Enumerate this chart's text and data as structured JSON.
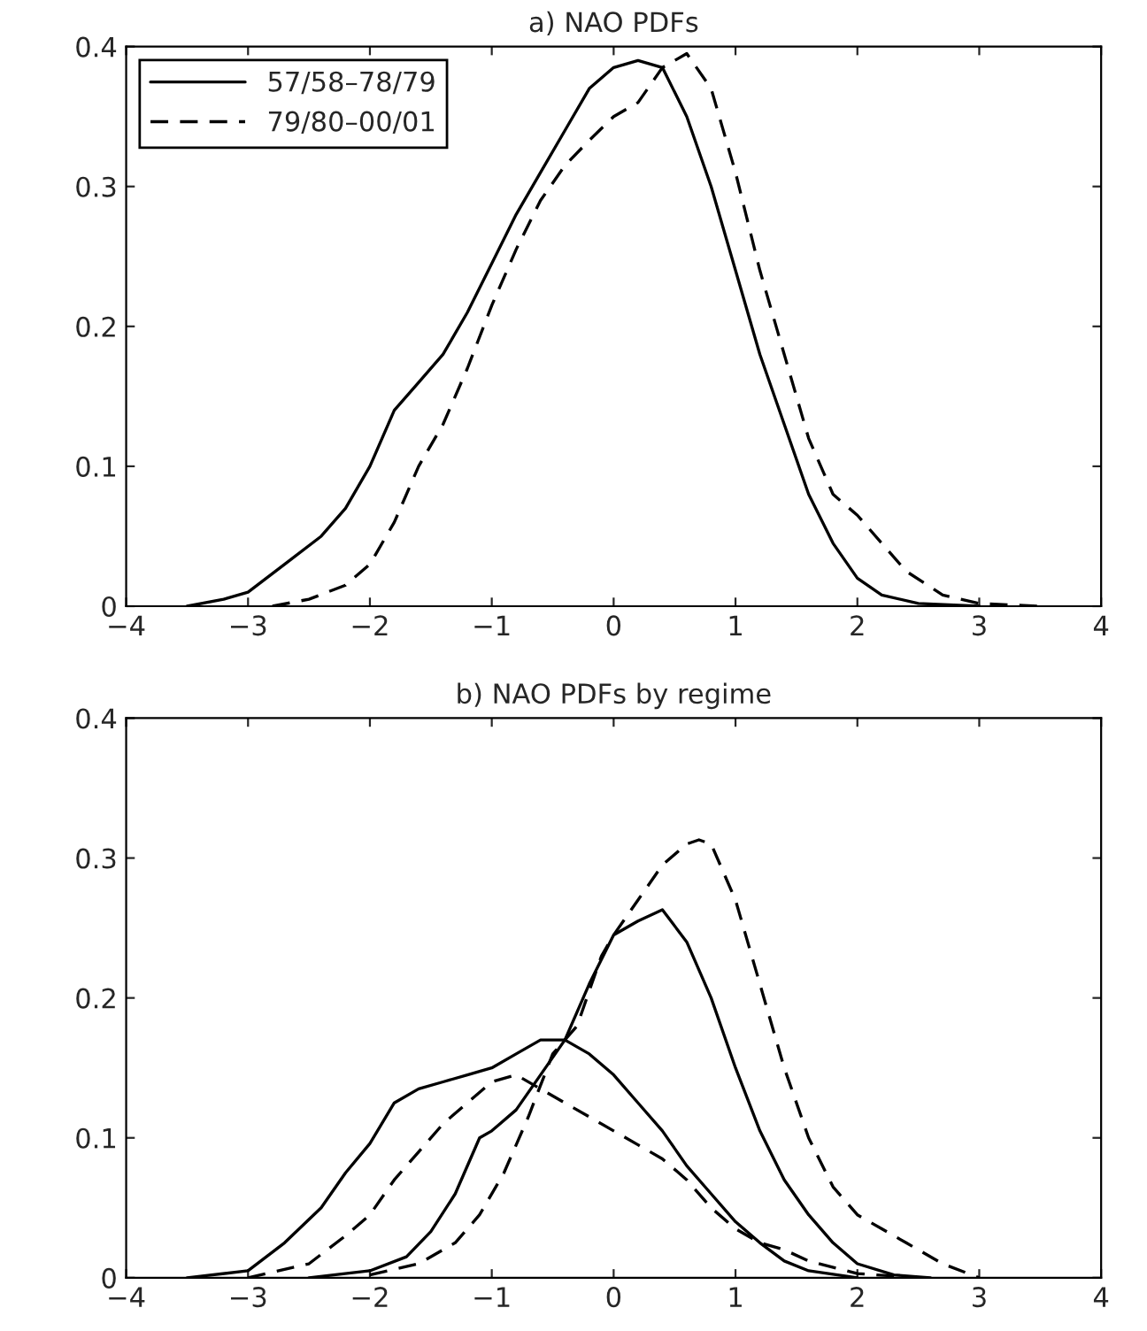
{
  "chart_data": [
    {
      "type": "line",
      "title": "a) NAO PDFs",
      "xlim": [
        -4,
        4
      ],
      "ylim": [
        0,
        0.4
      ],
      "xticks": [
        {
          "value": -4,
          "label": "−4"
        },
        {
          "value": -3,
          "label": "−3"
        },
        {
          "value": -2,
          "label": "−2"
        },
        {
          "value": -1,
          "label": "−1"
        },
        0,
        1,
        2,
        3,
        4
      ],
      "yticks": [
        0,
        0.1,
        0.2,
        0.3,
        0.4
      ],
      "legend": "top left",
      "grid": false,
      "series": [
        {
          "name": "57/58–78/79",
          "color": "#000000",
          "line_style": "solid",
          "x": [
            -3.5,
            -3.2,
            -3,
            -2.7,
            -2.4,
            -2.2,
            -2,
            -1.8,
            -1.6,
            -1.4,
            -1.2,
            -1,
            -0.8,
            -0.6,
            -0.4,
            -0.2,
            0,
            0.2,
            0.4,
            0.6,
            0.8,
            1,
            1.2,
            1.4,
            1.6,
            1.8,
            2,
            2.2,
            2.5,
            3
          ],
          "values": [
            0,
            0.005,
            0.01,
            0.03,
            0.05,
            0.07,
            0.1,
            0.14,
            0.16,
            0.18,
            0.21,
            0.245,
            0.28,
            0.31,
            0.34,
            0.37,
            0.385,
            0.39,
            0.385,
            0.35,
            0.3,
            0.24,
            0.18,
            0.13,
            0.08,
            0.045,
            0.02,
            0.008,
            0.002,
            0
          ]
        },
        {
          "name": "79/80–00/01",
          "color": "#000000",
          "line_style": "dashed",
          "x": [
            -2.8,
            -2.5,
            -2.2,
            -2,
            -1.8,
            -1.6,
            -1.4,
            -1.2,
            -1,
            -0.8,
            -0.6,
            -0.4,
            -0.2,
            0,
            0.2,
            0.4,
            0.6,
            0.8,
            1,
            1.2,
            1.4,
            1.6,
            1.8,
            2,
            2.2,
            2.4,
            2.7,
            3,
            3.5
          ],
          "values": [
            0,
            0.005,
            0.015,
            0.03,
            0.06,
            0.1,
            0.13,
            0.17,
            0.215,
            0.255,
            0.29,
            0.315,
            0.333,
            0.35,
            0.36,
            0.385,
            0.395,
            0.37,
            0.31,
            0.24,
            0.18,
            0.12,
            0.08,
            0.065,
            0.045,
            0.025,
            0.008,
            0.002,
            0
          ]
        }
      ]
    },
    {
      "type": "line",
      "title": "b) NAO PDFs by regime",
      "xlim": [
        -4,
        4
      ],
      "ylim": [
        0,
        0.4
      ],
      "xticks": [
        {
          "value": -4,
          "label": "−4"
        },
        {
          "value": -3,
          "label": "−3"
        },
        {
          "value": -2,
          "label": "−2"
        },
        {
          "value": -1,
          "label": "−1"
        },
        0,
        1,
        2,
        3,
        4
      ],
      "yticks": [
        0,
        0.1,
        0.2,
        0.3,
        0.4
      ],
      "grid": false,
      "series": [
        {
          "color": "#000000",
          "line_style": "solid",
          "x": [
            -3.5,
            -3,
            -2.7,
            -2.4,
            -2.2,
            -2,
            -1.8,
            -1.6,
            -1.4,
            -1.2,
            -1,
            -0.8,
            -0.6,
            -0.4,
            -0.2,
            0,
            0.2,
            0.4,
            0.6,
            0.8,
            1,
            1.2,
            1.4,
            1.6,
            2
          ],
          "values": [
            0,
            0.005,
            0.025,
            0.05,
            0.075,
            0.096,
            0.125,
            0.135,
            0.14,
            0.145,
            0.15,
            0.16,
            0.17,
            0.17,
            0.16,
            0.145,
            0.125,
            0.105,
            0.08,
            0.06,
            0.04,
            0.025,
            0.012,
            0.005,
            0
          ]
        },
        {
          "color": "#000000",
          "line_style": "solid",
          "x": [
            -2.5,
            -2,
            -1.7,
            -1.5,
            -1.3,
            -1.1,
            -1,
            -0.8,
            -0.6,
            -0.4,
            -0.2,
            0,
            0.2,
            0.4,
            0.6,
            0.8,
            1,
            1.2,
            1.4,
            1.6,
            1.8,
            2,
            2.3,
            2.6
          ],
          "values": [
            0,
            0.005,
            0.015,
            0.033,
            0.06,
            0.1,
            0.105,
            0.12,
            0.145,
            0.17,
            0.21,
            0.245,
            0.255,
            0.263,
            0.24,
            0.2,
            0.15,
            0.105,
            0.07,
            0.045,
            0.025,
            0.01,
            0.002,
            0
          ]
        },
        {
          "color": "#000000",
          "line_style": "dashed",
          "x": [
            -3,
            -2.5,
            -2.2,
            -2,
            -1.8,
            -1.6,
            -1.4,
            -1.2,
            -1,
            -0.8,
            -0.6,
            -0.4,
            -0.2,
            0,
            0.2,
            0.4,
            0.6,
            0.8,
            1,
            1.2,
            1.4,
            1.6,
            2,
            2.5
          ],
          "values": [
            0,
            0.01,
            0.03,
            0.045,
            0.07,
            0.09,
            0.11,
            0.125,
            0.14,
            0.145,
            0.135,
            0.125,
            0.115,
            0.105,
            0.095,
            0.085,
            0.07,
            0.05,
            0.035,
            0.025,
            0.02,
            0.012,
            0.003,
            0
          ]
        },
        {
          "color": "#000000",
          "line_style": "dashed",
          "x": [
            -2,
            -1.6,
            -1.3,
            -1.1,
            -0.9,
            -0.7,
            -0.5,
            -0.3,
            -0.1,
            0,
            0.2,
            0.4,
            0.6,
            0.7,
            0.8,
            1,
            1.2,
            1.4,
            1.6,
            1.8,
            2,
            2.2,
            2.4,
            2.7,
            3
          ],
          "values": [
            0.002,
            0.01,
            0.025,
            0.045,
            0.075,
            0.115,
            0.16,
            0.18,
            0.23,
            0.245,
            0.27,
            0.295,
            0.31,
            0.313,
            0.31,
            0.27,
            0.21,
            0.15,
            0.1,
            0.065,
            0.045,
            0.035,
            0.025,
            0.01,
            0
          ]
        }
      ]
    }
  ]
}
